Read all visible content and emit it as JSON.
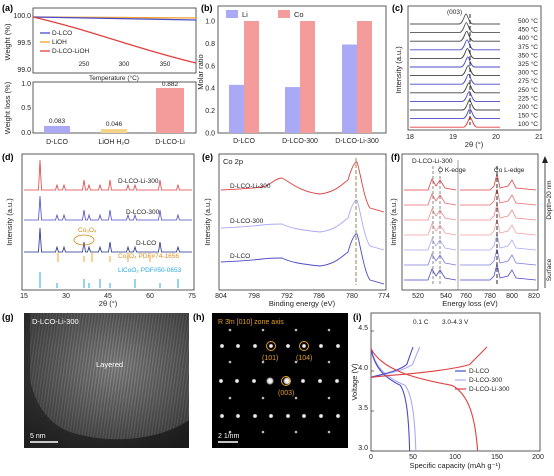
{
  "colors": {
    "red": "#e04040",
    "pink": "#f49c9c",
    "blue": "#4b4bc8",
    "lavender": "#a9a9f5",
    "orange": "#f0a030",
    "cyan": "#29a9e0",
    "dark": "#1f2d8a",
    "gray": "#9a9a9a"
  },
  "panel_a": {
    "label": "(a)",
    "legend": [
      "D-LCO",
      "LiOH",
      "D-LCO-LiOH"
    ],
    "top_ylabel": "Weight (%)",
    "top_yticks": [
      "100.0",
      "99.5",
      "99.0"
    ],
    "top_xticks": [
      "250",
      "300",
      "350"
    ],
    "top_xlabel": "Temperature (°C)",
    "bot_ylabel": "Weight loss (%)",
    "bot_yticks": [
      "0.0",
      "0.5",
      "1.0"
    ],
    "bot_xticks": [
      "D-LCO",
      "LiOH H₂O",
      "D-LCO-Li"
    ],
    "bar_values": [
      "0.083",
      "0.046",
      "0.882"
    ]
  },
  "panel_b": {
    "label": "(b)",
    "ylabel": "Molar ratio",
    "yticks": [
      "0.0",
      "0.2",
      "0.4",
      "0.6",
      "0.8",
      "1.0"
    ],
    "legend": [
      "Li",
      "Co"
    ],
    "categories": [
      "D-LCO",
      "D-LCO-300",
      "D-LCO-Li-300"
    ]
  },
  "panel_c": {
    "label": "(c)",
    "peak": "(003)",
    "ylabel": "Intensity (a.u.)",
    "xlabel": "2θ (°)",
    "xticks": [
      "18",
      "19",
      "20",
      "21"
    ],
    "temps": [
      "500 °C",
      "450 °C",
      "400 °C",
      "375 °C",
      "350 °C",
      "325 °C",
      "300 °C",
      "275 °C",
      "250 °C",
      "225 °C",
      "200 °C",
      "150 °C",
      "100 °C"
    ]
  },
  "panel_d": {
    "label": "(d)",
    "ylabel": "Intensity (a.u.)",
    "xlabel": "2θ (°)",
    "xticks": [
      "15",
      "30",
      "45",
      "60",
      "75"
    ],
    "traces": [
      "D-LCO-Li-300",
      "D-LCO-300",
      "D-LCO"
    ],
    "annot": "Co₃O₄",
    "refs": [
      "Co₃O₄  PDF#74-1656",
      "LiCoO₂  PDF#50-0653"
    ]
  },
  "panel_e": {
    "label": "(e)",
    "title": "Co 2p",
    "ylabel": "Intensity (a.u.)",
    "xlabel": "Binding energy (eV)",
    "xticks": [
      "804",
      "798",
      "792",
      "786",
      "780",
      "774"
    ],
    "traces": [
      "D-LCO-Li-300",
      "D-LCO-300",
      "D-LCO"
    ]
  },
  "panel_f": {
    "label": "(f)",
    "title": "D-LCO-Li-300",
    "o_edge": "O K-edge",
    "co_edge": "Co L-edge",
    "ylabel": "Intensity (a.u.)",
    "xlabel": "Energy loss (eV)",
    "xticks": [
      "520",
      "540",
      "760",
      "780",
      "800",
      "820"
    ],
    "side_top": "Depth=20 nm",
    "side_bottom": "Surface"
  },
  "panel_g": {
    "label": "(g)",
    "title": "D-LCO-Li-300",
    "layered": "Layered",
    "scale": "5 nm"
  },
  "panel_h": {
    "label": "(h)",
    "title": "R 3̄m  [010] zone axis",
    "spots": [
      "(101)",
      "(104)",
      "(003)"
    ],
    "scale": "2 1/nm"
  },
  "panel_i": {
    "label": "(i)",
    "rate": "0.1 C",
    "range": "3.0-4.3 V",
    "ylabel": "Voltage (V)",
    "xlabel": "Specific capacity (mAh g⁻¹)",
    "yticks": [
      "3.0",
      "3.5",
      "4.0",
      "4.5"
    ],
    "xticks": [
      "0",
      "50",
      "100",
      "150",
      "200"
    ],
    "legend": [
      "D-LCO",
      "D-LCO-300",
      "D-LCO-Li-300"
    ]
  }
}
